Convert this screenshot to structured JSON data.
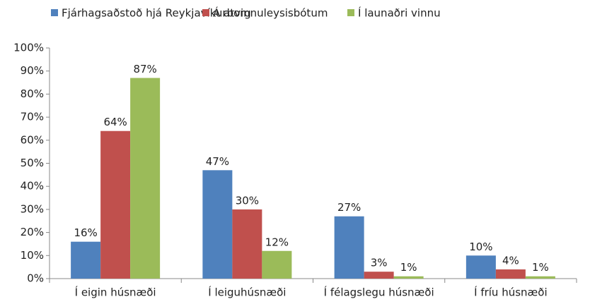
{
  "chart_data": {
    "type": "bar",
    "categories": [
      "Í eigin húsnæði",
      "Í leiguhúsnæði",
      "Í félagslegu húsnæði",
      "Í fríu húsnæði"
    ],
    "series": [
      {
        "name": "Fjárhagsaðstoð hjá Reykjavíkurborg",
        "color": "#4f81bd",
        "values": [
          16,
          47,
          27,
          10
        ],
        "value_labels": [
          "16%",
          "47%",
          "27%",
          "10%"
        ]
      },
      {
        "name": "Á atvinnuleysisbótum",
        "color": "#c0504d",
        "values": [
          64,
          30,
          3,
          4
        ],
        "value_labels": [
          "64%",
          "30%",
          "3%",
          "4%"
        ]
      },
      {
        "name": "Í launaðri vinnu",
        "color": "#9bbb59",
        "values": [
          87,
          12,
          1,
          1
        ],
        "value_labels": [
          "87%",
          "12%",
          "1%",
          "1%"
        ]
      }
    ],
    "ylim": [
      0,
      100
    ],
    "yticks": [
      {
        "value": 0,
        "label": "0%"
      },
      {
        "value": 10,
        "label": "10%"
      },
      {
        "value": 20,
        "label": "20%"
      },
      {
        "value": 30,
        "label": "30%"
      },
      {
        "value": 40,
        "label": "40%"
      },
      {
        "value": 50,
        "label": "50%"
      },
      {
        "value": 60,
        "label": "60%"
      },
      {
        "value": 70,
        "label": "70%"
      },
      {
        "value": 80,
        "label": "80%"
      },
      {
        "value": 90,
        "label": "90%"
      },
      {
        "value": 100,
        "label": "100%"
      }
    ],
    "grid": false,
    "legend": "top"
  }
}
